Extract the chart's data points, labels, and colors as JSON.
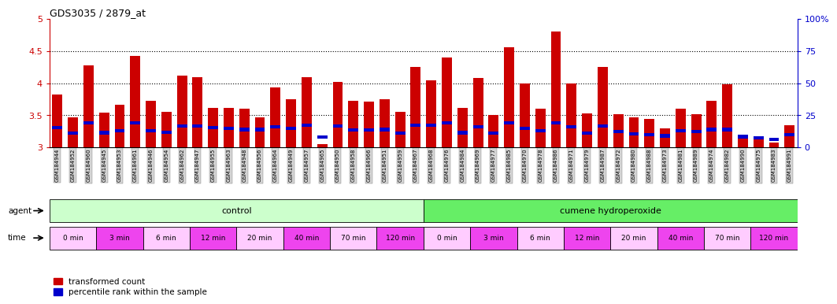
{
  "title": "GDS3035 / 2879_at",
  "samples": [
    "GSM184944",
    "GSM184952",
    "GSM184960",
    "GSM184945",
    "GSM184953",
    "GSM184961",
    "GSM184946",
    "GSM184954",
    "GSM184962",
    "GSM184947",
    "GSM184955",
    "GSM184963",
    "GSM184948",
    "GSM184956",
    "GSM184964",
    "GSM184949",
    "GSM184957",
    "GSM184965",
    "GSM184950",
    "GSM184958",
    "GSM184966",
    "GSM184951",
    "GSM184959",
    "GSM184967",
    "GSM184968",
    "GSM184976",
    "GSM184984",
    "GSM184969",
    "GSM184977",
    "GSM184985",
    "GSM184970",
    "GSM184978",
    "GSM184986",
    "GSM184971",
    "GSM184979",
    "GSM184987",
    "GSM184972",
    "GSM184980",
    "GSM184988",
    "GSM184973",
    "GSM184981",
    "GSM184989",
    "GSM184974",
    "GSM184982",
    "GSM184990",
    "GSM184975",
    "GSM184983",
    "GSM184991"
  ],
  "red_values": [
    3.82,
    3.47,
    4.28,
    3.54,
    3.67,
    4.43,
    3.73,
    3.55,
    4.12,
    4.1,
    3.62,
    3.62,
    3.6,
    3.47,
    3.94,
    3.75,
    4.1,
    3.05,
    4.02,
    3.73,
    3.72,
    3.75,
    3.56,
    4.25,
    4.05,
    4.4,
    3.62,
    4.08,
    3.51,
    4.56,
    4.0,
    3.6,
    4.8,
    4.0,
    3.53,
    4.25,
    3.52,
    3.47,
    3.45,
    3.3,
    3.6,
    3.52,
    3.73,
    3.98,
    3.2,
    3.15,
    3.08,
    3.35
  ],
  "blue_values": [
    3.31,
    3.22,
    3.38,
    3.23,
    3.26,
    3.38,
    3.26,
    3.24,
    3.33,
    3.33,
    3.31,
    3.3,
    3.28,
    3.28,
    3.32,
    3.3,
    3.35,
    3.16,
    3.33,
    3.27,
    3.27,
    3.28,
    3.22,
    3.35,
    3.35,
    3.38,
    3.23,
    3.32,
    3.22,
    3.38,
    3.3,
    3.26,
    3.38,
    3.32,
    3.22,
    3.33,
    3.25,
    3.21,
    3.2,
    3.18,
    3.26,
    3.25,
    3.28,
    3.28,
    3.17,
    3.15,
    3.13,
    3.2
  ],
  "ymin": 3.0,
  "ymax": 5.0,
  "yticks_left": [
    3.0,
    3.5,
    4.0,
    4.5,
    5.0
  ],
  "yticks_left_labels": [
    "3",
    "3.5",
    "4",
    "4.5",
    "5"
  ],
  "yticks_right_pct": [
    0,
    25,
    50,
    75,
    100
  ],
  "yticks_right_labels": [
    "0",
    "25",
    "50",
    "75",
    "100%"
  ],
  "dotted_lines": [
    3.5,
    4.0,
    4.5
  ],
  "control_count": 24,
  "time_labels": [
    "0 min",
    "3 min",
    "6 min",
    "12 min",
    "20 min",
    "40 min",
    "70 min",
    "120 min"
  ],
  "time_per_group": 3,
  "agent_control_label": "control",
  "agent_treatment_label": "cumene hydroperoxide",
  "color_red": "#cc0000",
  "color_blue": "#0000cc",
  "color_control_agent": "#ccffcc",
  "color_treatment_agent": "#66ee66",
  "color_time_light": "#ffccff",
  "color_time_dark": "#ee44ee",
  "color_xtick_bg": "#d4d4d4",
  "bar_width": 0.65
}
